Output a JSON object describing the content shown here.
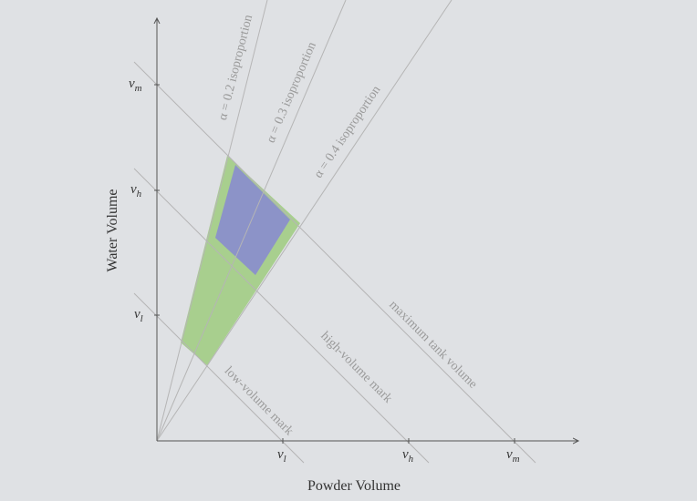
{
  "axes": {
    "x_title": "Powder Volume",
    "y_title": "Water Volume",
    "x_ticks": [
      {
        "var": "v",
        "sub": "l"
      },
      {
        "var": "v",
        "sub": "h"
      },
      {
        "var": "v",
        "sub": "m"
      }
    ],
    "y_ticks": [
      {
        "var": "v",
        "sub": "m"
      },
      {
        "var": "v",
        "sub": "h"
      },
      {
        "var": "v",
        "sub": "l"
      }
    ]
  },
  "lines": {
    "isoproportions": [
      "α = 0.2 isoproportion",
      "α = 0.3 isoproportion",
      "α = 0.4 isoproportion"
    ],
    "volume_marks": [
      "maximum tank volume",
      "high-volume mark",
      "low-volume mark"
    ]
  }
}
